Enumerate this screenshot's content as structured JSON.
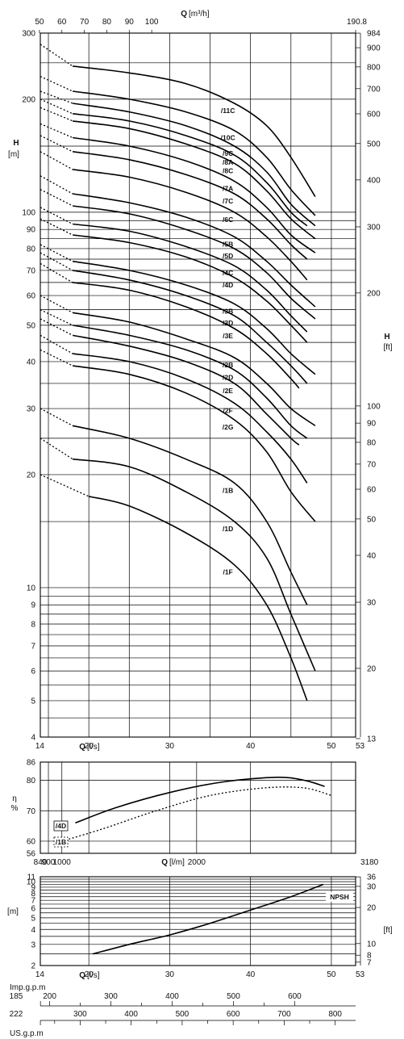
{
  "chart_data": [
    {
      "type": "line",
      "panel": "head",
      "title": "",
      "ylabel": "H",
      "ylabel_unit": "[m]",
      "y2label": "H",
      "y2label_unit": "[ft]",
      "xlabel": "Q",
      "xlabel_unit": "[l/s]",
      "x2label": "Q",
      "x2label_unit": "[m³/h]",
      "y_scale": "log",
      "xlim": [
        14,
        53
      ],
      "ylim": [
        4,
        300
      ],
      "x_ticks": [
        "14",
        "20",
        "30",
        "40",
        "50",
        "53"
      ],
      "x2_ticks": [
        "50",
        "60",
        "70",
        "80",
        "90",
        "100",
        "190.8"
      ],
      "y_ticks": [
        "4",
        "5",
        "6",
        "7",
        "8",
        "9",
        "10",
        "20",
        "30",
        "40",
        "50",
        "60",
        "70",
        "80",
        "90",
        "100",
        "200",
        "300"
      ],
      "y2_ticks": [
        "13",
        "20",
        "30",
        "40",
        "50",
        "60",
        "70",
        "80",
        "90",
        "100",
        "200",
        "300",
        "400",
        "500",
        "600",
        "700",
        "800",
        "900",
        "984"
      ],
      "series": [
        {
          "name": "/11C",
          "x": [
            14,
            18,
            25,
            32,
            38,
            42,
            45,
            48
          ],
          "y": [
            280,
            245,
            235,
            220,
            195,
            170,
            140,
            110
          ]
        },
        {
          "name": "/10C",
          "x": [
            14,
            18,
            25,
            32,
            38,
            42,
            45,
            48
          ],
          "y": [
            230,
            210,
            200,
            185,
            165,
            140,
            115,
            98
          ]
        },
        {
          "name": "/9C",
          "x": [
            14,
            18,
            25,
            32,
            38,
            42,
            45,
            48
          ],
          "y": [
            210,
            195,
            185,
            170,
            150,
            128,
            105,
            92
          ]
        },
        {
          "name": "/8A",
          "x": [
            14,
            18,
            25,
            32,
            38,
            42,
            45,
            47
          ],
          "y": [
            200,
            183,
            175,
            160,
            142,
            120,
            100,
            92
          ]
        },
        {
          "name": "/8C",
          "x": [
            14,
            18,
            25,
            32,
            38,
            42,
            45,
            48
          ],
          "y": [
            190,
            175,
            167,
            152,
            135,
            114,
            96,
            85
          ]
        },
        {
          "name": "/7A",
          "x": [
            14,
            18,
            25,
            32,
            38,
            42,
            45,
            48
          ],
          "y": [
            172,
            158,
            150,
            137,
            121,
            103,
            87,
            78
          ]
        },
        {
          "name": "/7C",
          "x": [
            14,
            18,
            25,
            32,
            38,
            42,
            45,
            47
          ],
          "y": [
            160,
            145,
            138,
            126,
            112,
            96,
            82,
            75
          ]
        },
        {
          "name": "/6C",
          "x": [
            14,
            18,
            25,
            32,
            38,
            42,
            45,
            47
          ],
          "y": [
            145,
            130,
            124,
            113,
            100,
            86,
            74,
            66
          ]
        },
        {
          "name": "/5B",
          "x": [
            14,
            18,
            25,
            32,
            38,
            42,
            45,
            48
          ],
          "y": [
            125,
            112,
            106,
            97,
            86,
            74,
            64,
            56
          ]
        },
        {
          "name": "/5D",
          "x": [
            14,
            18,
            25,
            32,
            38,
            42,
            45,
            48
          ],
          "y": [
            115,
            104,
            99,
            90,
            80,
            69,
            59,
            52
          ]
        },
        {
          "name": "/4C",
          "x": [
            14,
            18,
            25,
            32,
            38,
            42,
            45,
            47
          ],
          "y": [
            103,
            93,
            89,
            81,
            72,
            62,
            53,
            48
          ]
        },
        {
          "name": "/4D",
          "x": [
            14,
            18,
            25,
            32,
            38,
            42,
            45,
            47
          ],
          "y": [
            96,
            87,
            83,
            76,
            67,
            58,
            50,
            45
          ]
        },
        {
          "name": "/3B",
          "x": [
            14,
            18,
            25,
            32,
            38,
            42,
            45,
            48
          ],
          "y": [
            82,
            74,
            70,
            64,
            57,
            49,
            42,
            37
          ]
        },
        {
          "name": "/3D",
          "x": [
            14,
            18,
            25,
            32,
            38,
            42,
            45,
            47
          ],
          "y": [
            78,
            70,
            66,
            60,
            53,
            45,
            39,
            35
          ]
        },
        {
          "name": "/3E",
          "x": [
            14,
            18,
            25,
            32,
            38,
            42,
            45,
            46
          ],
          "y": [
            73,
            65,
            62,
            56,
            49,
            42,
            36,
            34
          ]
        },
        {
          "name": "/2B",
          "x": [
            14,
            18,
            25,
            32,
            38,
            42,
            45,
            48
          ],
          "y": [
            60,
            54,
            51,
            46,
            41,
            35,
            30,
            27
          ]
        },
        {
          "name": "/2D",
          "x": [
            14,
            18,
            25,
            32,
            38,
            42,
            45,
            47
          ],
          "y": [
            55,
            50,
            47,
            43,
            38,
            32,
            27,
            25
          ]
        },
        {
          "name": "/2E",
          "x": [
            14,
            18,
            25,
            32,
            38,
            42,
            45,
            46
          ],
          "y": [
            52,
            47,
            44,
            40,
            35,
            29,
            25,
            24
          ]
        },
        {
          "name": "/2F",
          "x": [
            14,
            18,
            25,
            32,
            38,
            42,
            45,
            47
          ],
          "y": [
            47,
            42,
            40,
            36,
            31,
            26,
            22,
            19
          ]
        },
        {
          "name": "/2G",
          "x": [
            14,
            18,
            25,
            32,
            38,
            42,
            45,
            48
          ],
          "y": [
            43,
            39,
            37,
            33,
            28,
            23,
            18,
            15
          ]
        },
        {
          "name": "/1B",
          "x": [
            14,
            18,
            25,
            32,
            38,
            42,
            45,
            47
          ],
          "y": [
            30,
            27,
            25,
            22,
            19,
            15,
            11,
            9
          ]
        },
        {
          "name": "/1D",
          "x": [
            14,
            18,
            25,
            32,
            38,
            42,
            45,
            48
          ],
          "y": [
            25,
            22,
            21,
            18,
            15,
            12,
            8.5,
            6
          ]
        },
        {
          "name": "/1F",
          "x": [
            14,
            20,
            25,
            32,
            38,
            42,
            45,
            47
          ],
          "y": [
            20,
            17.5,
            16.5,
            14,
            11.5,
            9,
            6.5,
            5
          ]
        }
      ]
    },
    {
      "type": "line",
      "panel": "efficiency",
      "ylabel": "η",
      "ylabel_unit": "%",
      "xlabel": "Q",
      "xlabel_unit": "[l/m]",
      "xlim": [
        840,
        3180
      ],
      "ylim": [
        56,
        86
      ],
      "x_ticks": [
        "840",
        "900",
        "1000",
        "2000",
        "3180"
      ],
      "y_ticks": [
        "56",
        "60",
        "70",
        "80",
        "86"
      ],
      "series": [
        {
          "name": "/4D",
          "x": [
            1100,
            1400,
            1800,
            2200,
            2600,
            2800,
            2950
          ],
          "y": [
            66,
            71,
            76,
            79.5,
            81,
            80,
            78
          ]
        },
        {
          "name": "/1B",
          "x": [
            1000,
            1300,
            1700,
            2100,
            2500,
            2800,
            3000
          ],
          "y": [
            60,
            64,
            70,
            75,
            77.5,
            77.5,
            75
          ]
        }
      ]
    },
    {
      "type": "line",
      "panel": "npsh",
      "ylabel_unit": "[m]",
      "y2label_unit": "[ft]",
      "xlabel": "Q",
      "xlabel_unit": "[l/s]",
      "y_scale": "log",
      "xlim": [
        14,
        53
      ],
      "ylim": [
        2,
        11
      ],
      "x_ticks": [
        "14",
        "20",
        "30",
        "40",
        "50",
        "53"
      ],
      "y_ticks": [
        "2",
        "3",
        "4",
        "5",
        "6",
        "7",
        "8",
        "9",
        "10",
        "11"
      ],
      "y2_ticks": [
        "7",
        "8",
        "10",
        "20",
        "30",
        "36"
      ],
      "x3_label": "Imp.g.p.m",
      "x3_ticks": [
        "185",
        "200",
        "300",
        "400",
        "500",
        "600"
      ],
      "x4_label": "US.g.p.m",
      "x4_ticks": [
        "222",
        "300",
        "400",
        "500",
        "600",
        "700",
        "800"
      ],
      "series": [
        {
          "name": "NPSH",
          "x": [
            20.5,
            25,
            30,
            35,
            40,
            45,
            49
          ],
          "y": [
            2.5,
            3.0,
            3.6,
            4.5,
            5.8,
            7.5,
            9.5
          ]
        }
      ]
    }
  ]
}
